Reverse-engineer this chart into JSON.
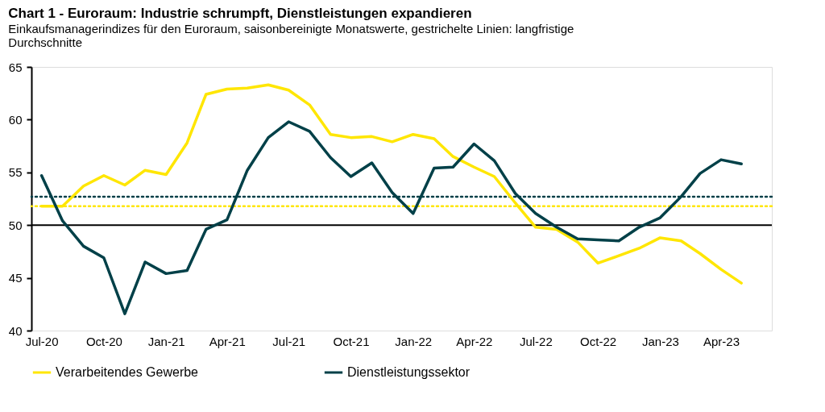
{
  "chart_data": {
    "type": "line",
    "title": "Chart 1 - Euroraum: Industrie schrumpft, Dienstleistungen expandieren",
    "subtitle": "Einkaufsmanagerindizes für den Euroraum, saisonbereinigte Monatswerte, gestrichelte Linien: langfristige Durchschnitte",
    "x": [
      "2020-07",
      "2020-08",
      "2020-09",
      "2020-10",
      "2020-11",
      "2020-12",
      "2021-01",
      "2021-02",
      "2021-03",
      "2021-04",
      "2021-05",
      "2021-06",
      "2021-07",
      "2021-08",
      "2021-09",
      "2021-10",
      "2021-11",
      "2021-12",
      "2022-01",
      "2022-02",
      "2022-03",
      "2022-04",
      "2022-05",
      "2022-06",
      "2022-07",
      "2022-08",
      "2022-09",
      "2022-10",
      "2022-11",
      "2022-12",
      "2023-01",
      "2023-02",
      "2023-03",
      "2023-04",
      "2023-05"
    ],
    "series": [
      {
        "name": "Verarbeitendes Gewerbe",
        "color": "#ffe600",
        "values": [
          51.8,
          51.8,
          53.7,
          54.7,
          53.8,
          55.2,
          54.8,
          57.8,
          62.4,
          62.9,
          63.0,
          63.3,
          62.8,
          61.4,
          58.6,
          58.3,
          58.4,
          57.9,
          58.6,
          58.2,
          56.5,
          55.5,
          54.6,
          52.1,
          49.8,
          49.6,
          48.4,
          46.4,
          47.1,
          47.8,
          48.8,
          48.5,
          47.3,
          45.8,
          44.5
        ]
      },
      {
        "name": "Dienstleistungssektor",
        "color": "#004048",
        "values": [
          54.7,
          50.4,
          48.0,
          46.9,
          41.6,
          46.5,
          45.4,
          45.7,
          49.6,
          50.5,
          55.2,
          58.3,
          59.8,
          58.9,
          56.4,
          54.6,
          55.9,
          53.1,
          51.1,
          55.4,
          55.5,
          57.7,
          56.1,
          53.0,
          51.1,
          49.8,
          48.7,
          48.6,
          48.5,
          49.8,
          50.7,
          52.7,
          54.9,
          56.2,
          55.8
        ]
      }
    ],
    "xlim": [
      "2020-06-16",
      "2023-06-15"
    ],
    "xticks": [
      {
        "value": "2020-07",
        "label": "Jul-20"
      },
      {
        "value": "2020-10",
        "label": "Oct-20"
      },
      {
        "value": "2021-01",
        "label": "Jan-21"
      },
      {
        "value": "2021-04",
        "label": "Apr-21"
      },
      {
        "value": "2021-07",
        "label": "Jul-21"
      },
      {
        "value": "2021-10",
        "label": "Oct-21"
      },
      {
        "value": "2022-01",
        "label": "Jan-22"
      },
      {
        "value": "2022-04",
        "label": "Apr-22"
      },
      {
        "value": "2022-07",
        "label": "Jul-22"
      },
      {
        "value": "2022-10",
        "label": "Oct-22"
      },
      {
        "value": "2023-01",
        "label": "Jan-23"
      },
      {
        "value": "2023-04",
        "label": "Apr-23"
      }
    ],
    "ylim": [
      40,
      65
    ],
    "yticks": [
      40,
      45,
      50,
      55,
      60,
      65
    ],
    "ref_lines": [
      {
        "axis": "y",
        "value": 50,
        "color": "#000000",
        "line_style": "solid"
      },
      {
        "axis": "y",
        "value": 52.7,
        "color": "#004048",
        "line_style": "dotted"
      },
      {
        "axis": "y",
        "value": 51.8,
        "color": "#ffe600",
        "line_style": "dotted"
      }
    ],
    "grid": false,
    "legend": "bottom",
    "marker": "none",
    "line_style": "solid"
  }
}
